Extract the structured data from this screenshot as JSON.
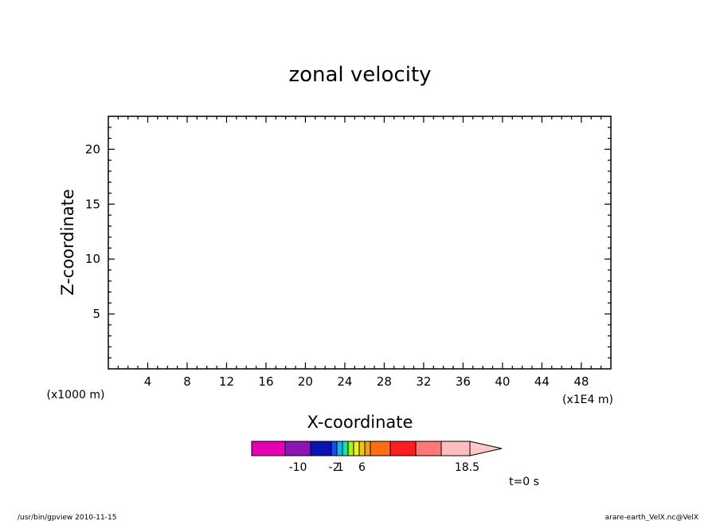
{
  "chart_data": {
    "type": "heatmap",
    "title": "zonal velocity",
    "xlabel": "X-coordinate",
    "ylabel": "Z-coordinate",
    "x_unit_note": "(x1E4 m)",
    "y_unit_note": "(x1000 m)",
    "xlim": [
      0,
      51
    ],
    "ylim": [
      0,
      23
    ],
    "x_ticks": [
      4,
      8,
      12,
      16,
      20,
      24,
      28,
      32,
      36,
      40,
      44,
      48
    ],
    "y_ticks": [
      5,
      10,
      15,
      20
    ],
    "x_tick_labels": [
      "4",
      "8",
      "12",
      "16",
      "20",
      "24",
      "28",
      "32",
      "36",
      "40",
      "44",
      "48"
    ],
    "y_tick_labels": [
      "5",
      "10",
      "15",
      "20"
    ],
    "grid": false,
    "data": [],
    "colorbar": {
      "colors": [
        "#e600b4",
        "#8c14b4",
        "#0a14b4",
        "#1450f0",
        "#14b4f0",
        "#14e6a0",
        "#aaf014",
        "#f0f014",
        "#f0c814",
        "#f0a014",
        "#ff6e14",
        "#ff1e1e",
        "#ff7878",
        "#ffbebe"
      ],
      "extend_color": "#ffc8c8",
      "labels": [
        {
          "value": "-10",
          "slot": 1.5
        },
        {
          "value": "-2",
          "slot": 3.5
        },
        {
          "value": "1",
          "slot": 4.6
        },
        {
          "value": "6",
          "slot": 8.5
        },
        {
          "value": "18.5",
          "slot": 13.9
        }
      ]
    },
    "time_label": "t=0 s"
  },
  "footer": {
    "left": "/usr/bin/gpview   2010-11-15",
    "right": "arare-earth_VelX.nc@VelX"
  }
}
